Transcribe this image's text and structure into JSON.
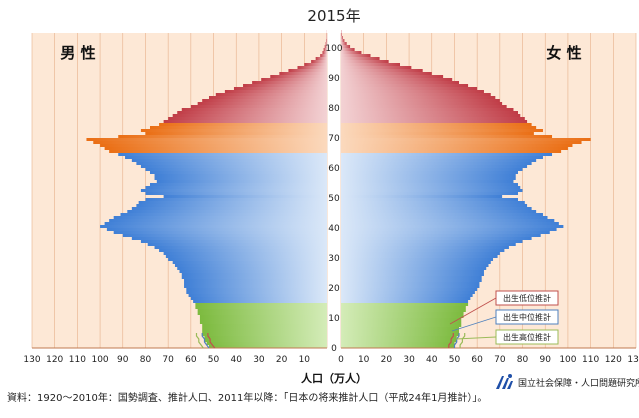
{
  "chart_data": {
    "type": "bar",
    "orientation": "horizontal",
    "title": "2015年",
    "male_label": "男 性",
    "female_label": "女 性",
    "xlabel": "人口（万人）",
    "x_ticks_left": [
      "130",
      "120",
      "110",
      "100",
      "90",
      "80",
      "70",
      "60",
      "50",
      "40",
      "30",
      "20",
      "10"
    ],
    "x_ticks_right": [
      "0",
      "10",
      "20",
      "30",
      "40",
      "50",
      "60",
      "70",
      "80",
      "90",
      "100",
      "110",
      "120",
      "130"
    ],
    "y_ticks": [
      "0",
      "10",
      "20",
      "30",
      "40",
      "50",
      "60",
      "70",
      "80",
      "90",
      "100"
    ],
    "xlim": [
      0,
      130
    ],
    "ylim": [
      0,
      105
    ],
    "ages": [
      0,
      1,
      2,
      3,
      4,
      5,
      6,
      7,
      8,
      9,
      10,
      11,
      12,
      13,
      14,
      15,
      16,
      17,
      18,
      19,
      20,
      21,
      22,
      23,
      24,
      25,
      26,
      27,
      28,
      29,
      30,
      31,
      32,
      33,
      34,
      35,
      36,
      37,
      38,
      39,
      40,
      41,
      42,
      43,
      44,
      45,
      46,
      47,
      48,
      49,
      50,
      51,
      52,
      53,
      54,
      55,
      56,
      57,
      58,
      59,
      60,
      61,
      62,
      63,
      64,
      65,
      66,
      67,
      68,
      69,
      70,
      71,
      72,
      73,
      74,
      75,
      76,
      77,
      78,
      79,
      80,
      81,
      82,
      83,
      84,
      85,
      86,
      87,
      88,
      89,
      90,
      91,
      92,
      93,
      94,
      95,
      96,
      97,
      98,
      99,
      100,
      101,
      102,
      103,
      104,
      105
    ],
    "male": [
      52,
      53,
      54,
      54,
      55,
      55,
      55,
      55,
      56,
      56,
      56,
      57,
      57,
      58,
      58,
      59,
      60,
      61,
      62,
      62,
      63,
      63,
      63,
      64,
      64,
      65,
      66,
      67,
      68,
      70,
      71,
      72,
      74,
      76,
      79,
      82,
      86,
      90,
      94,
      97,
      100,
      98,
      96,
      94,
      91,
      88,
      86,
      84,
      83,
      80,
      72,
      80,
      82,
      80,
      78,
      75,
      76,
      76,
      78,
      80,
      82,
      84,
      86,
      89,
      92,
      96,
      98,
      100,
      103,
      106,
      92,
      80,
      82,
      78,
      74,
      72,
      70,
      68,
      66,
      64,
      60,
      57,
      55,
      52,
      49,
      45,
      41,
      37,
      33,
      29,
      25,
      21,
      17,
      13,
      10,
      7,
      5,
      3,
      2,
      1.5,
      1,
      0.6,
      0.4,
      0.2,
      0.1,
      0.05
    ],
    "female": [
      50,
      50,
      51,
      51,
      52,
      52,
      52,
      53,
      53,
      53,
      54,
      54,
      55,
      55,
      56,
      56,
      57,
      58,
      59,
      60,
      61,
      61,
      62,
      62,
      63,
      63,
      64,
      65,
      66,
      67,
      69,
      70,
      72,
      74,
      77,
      80,
      84,
      88,
      92,
      95,
      98,
      96,
      94,
      91,
      89,
      86,
      84,
      82,
      81,
      78,
      71,
      78,
      80,
      79,
      78,
      76,
      77,
      77,
      78,
      80,
      82,
      84,
      86,
      89,
      93,
      97,
      100,
      102,
      106,
      110,
      93,
      85,
      89,
      86,
      84,
      82,
      81,
      79,
      78,
      76,
      73,
      71,
      70,
      68,
      66,
      63,
      60,
      56,
      52,
      49,
      45,
      40,
      36,
      31,
      26,
      21,
      17,
      13,
      9,
      6,
      4,
      2.5,
      1.5,
      0.8,
      0.4,
      0.2
    ],
    "legend": [
      "出生低位推計",
      "出生中位推計",
      "出生高位推計"
    ],
    "colors": {
      "background": "#fde8d6",
      "grid": "#e6b08a",
      "young": "#8bc34a",
      "working": "#4a86d8",
      "young_old": "#ee7a24",
      "old": "#c84850",
      "low_variant": "#c0504d",
      "mid_variant": "#4f81bd",
      "high_variant": "#9bbb59"
    }
  },
  "footer": {
    "source": "資料：1920～2010年：国勢調査、推計人口、2011年以降：「日本の将来推計人口（平成24年1月推計）」。",
    "org": "国立社会保障・人口問題研究所",
    "logo_icon": "ipss-logo-icon"
  }
}
